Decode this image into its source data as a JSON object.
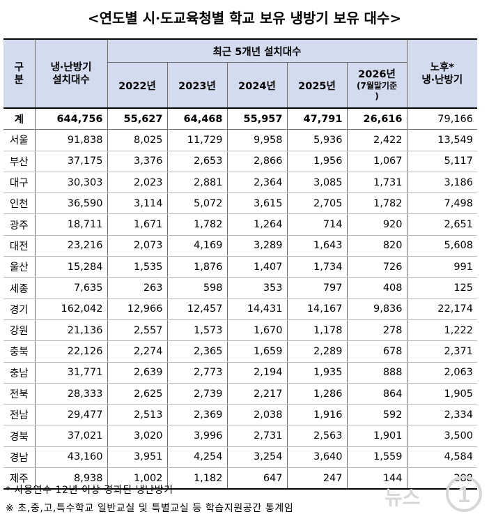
{
  "title": "<연도별 시·도교육청별 학교 보유 냉방기 보유 대수>",
  "header": {
    "region_label": "구분",
    "installed_label": "냉·난방기 설치대수",
    "recent_label": "최근 5개년 설치대수",
    "years": [
      "2022년",
      "2023년",
      "2024년",
      "2025년"
    ],
    "year_2026": "2026년",
    "year_2026_note": "(7월말기준)",
    "aged_label": "노후* 냉·난방기"
  },
  "rows": [
    {
      "region": "계",
      "total": "644,756",
      "y2022": "55,627",
      "y2023": "64,468",
      "y2024": "55,957",
      "y2025": "47,791",
      "y2026": "26,616",
      "aged": "79,166"
    },
    {
      "region": "서울",
      "total": "91,838",
      "y2022": "8,025",
      "y2023": "11,729",
      "y2024": "9,958",
      "y2025": "5,936",
      "y2026": "2,422",
      "aged": "13,549"
    },
    {
      "region": "부산",
      "total": "37,175",
      "y2022": "3,376",
      "y2023": "2,653",
      "y2024": "2,866",
      "y2025": "1,956",
      "y2026": "1,067",
      "aged": "5,117"
    },
    {
      "region": "대구",
      "total": "30,303",
      "y2022": "2,023",
      "y2023": "2,881",
      "y2024": "2,364",
      "y2025": "3,085",
      "y2026": "1,731",
      "aged": "3,186"
    },
    {
      "region": "인천",
      "total": "36,590",
      "y2022": "3,114",
      "y2023": "5,072",
      "y2024": "3,615",
      "y2025": "2,705",
      "y2026": "1,782",
      "aged": "7,498"
    },
    {
      "region": "광주",
      "total": "18,711",
      "y2022": "1,671",
      "y2023": "1,782",
      "y2024": "1,264",
      "y2025": "714",
      "y2026": "920",
      "aged": "2,651"
    },
    {
      "region": "대전",
      "total": "23,216",
      "y2022": "2,073",
      "y2023": "4,169",
      "y2024": "3,289",
      "y2025": "1,643",
      "y2026": "820",
      "aged": "5,608"
    },
    {
      "region": "울산",
      "total": "15,284",
      "y2022": "1,535",
      "y2023": "1,876",
      "y2024": "1,407",
      "y2025": "1,734",
      "y2026": "726",
      "aged": "991"
    },
    {
      "region": "세종",
      "total": "7,635",
      "y2022": "263",
      "y2023": "598",
      "y2024": "353",
      "y2025": "797",
      "y2026": "408",
      "aged": "125"
    },
    {
      "region": "경기",
      "total": "162,042",
      "y2022": "12,966",
      "y2023": "12,457",
      "y2024": "14,431",
      "y2025": "14,167",
      "y2026": "9,836",
      "aged": "22,174"
    },
    {
      "region": "강원",
      "total": "21,136",
      "y2022": "2,557",
      "y2023": "1,573",
      "y2024": "1,670",
      "y2025": "1,178",
      "y2026": "278",
      "aged": "1,222"
    },
    {
      "region": "충북",
      "total": "22,126",
      "y2022": "2,274",
      "y2023": "2,365",
      "y2024": "1,659",
      "y2025": "2,289",
      "y2026": "678",
      "aged": "2,371"
    },
    {
      "region": "충남",
      "total": "31,771",
      "y2022": "2,639",
      "y2023": "2,773",
      "y2024": "2,194",
      "y2025": "1,935",
      "y2026": "888",
      "aged": "2,063"
    },
    {
      "region": "전북",
      "total": "28,333",
      "y2022": "2,625",
      "y2023": "2,739",
      "y2024": "2,217",
      "y2025": "1,286",
      "y2026": "864",
      "aged": "1,905"
    },
    {
      "region": "전남",
      "total": "29,477",
      "y2022": "2,513",
      "y2023": "2,369",
      "y2024": "2,038",
      "y2025": "1,916",
      "y2026": "592",
      "aged": "2,334"
    },
    {
      "region": "경북",
      "total": "37,021",
      "y2022": "3,020",
      "y2023": "3,996",
      "y2024": "2,731",
      "y2025": "2,563",
      "y2026": "1,901",
      "aged": "3,500"
    },
    {
      "region": "경남",
      "total": "43,160",
      "y2022": "3,951",
      "y2023": "4,254",
      "y2024": "3,254",
      "y2025": "3,640",
      "y2026": "1,559",
      "aged": "4,584"
    },
    {
      "region": "제주",
      "total": "8,938",
      "y2022": "1,002",
      "y2023": "1,182",
      "y2024": "647",
      "y2025": "247",
      "y2026": "144",
      "aged": "288"
    }
  ],
  "notes": [
    "* 사용연수 12년 이상 경과된 냉난방기",
    "※ 초,중,고,특수학교 일반교실 및 특별교실 등 학습지원공간 통계임"
  ],
  "watermark": {
    "text": "뉴스1",
    "word": "뉴스",
    "numeral": "1",
    "color": "#d7d7d7"
  },
  "colors": {
    "header_bg": "#d3dcef"
  }
}
